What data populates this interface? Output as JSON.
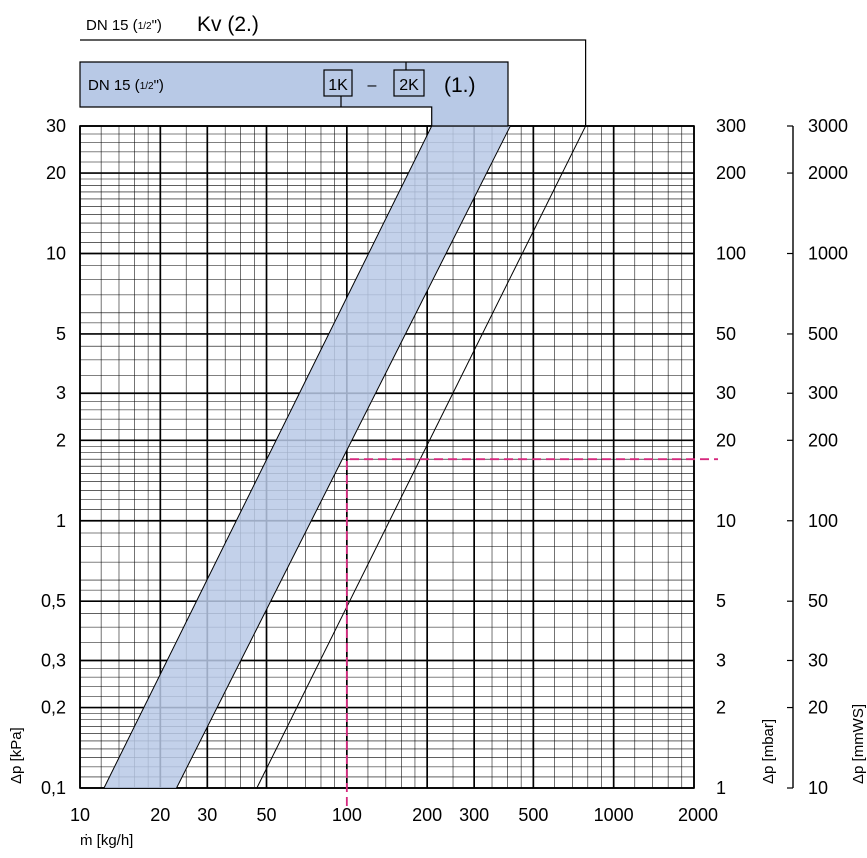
{
  "chart_data": {
    "type": "line",
    "x_axis": {
      "label": "ṁ [kg/h]",
      "scale": "log",
      "range": [
        10,
        2000
      ],
      "tick_labels": [
        {
          "value": 10,
          "label": "10"
        },
        {
          "value": 20,
          "label": "20"
        },
        {
          "value": 30,
          "label": "30"
        },
        {
          "value": 50,
          "label": "50"
        },
        {
          "value": 100,
          "label": "100"
        },
        {
          "value": 200,
          "label": "200"
        },
        {
          "value": 300,
          "label": "300"
        },
        {
          "value": 500,
          "label": "500"
        },
        {
          "value": 1000,
          "label": "1000"
        },
        {
          "value": 2000,
          "label": "2000"
        }
      ]
    },
    "y_axis_left": {
      "label": "Δp [kPa]",
      "scale": "log",
      "range": [
        0.1,
        30
      ],
      "tick_labels": [
        {
          "value": 0.1,
          "label": "0,1"
        },
        {
          "value": 0.2,
          "label": "0,2"
        },
        {
          "value": 0.3,
          "label": "0,3"
        },
        {
          "value": 0.5,
          "label": "0,5"
        },
        {
          "value": 1,
          "label": "1"
        },
        {
          "value": 2,
          "label": "2"
        },
        {
          "value": 3,
          "label": "3"
        },
        {
          "value": 5,
          "label": "5"
        },
        {
          "value": 10,
          "label": "10"
        },
        {
          "value": 20,
          "label": "20"
        },
        {
          "value": 30,
          "label": "30"
        }
      ]
    },
    "y_axis_mbar": {
      "label": "Δp [mbar]",
      "tick_labels": [
        {
          "value": 1,
          "label": "1"
        },
        {
          "value": 2,
          "label": "2"
        },
        {
          "value": 3,
          "label": "3"
        },
        {
          "value": 5,
          "label": "5"
        },
        {
          "value": 10,
          "label": "10"
        },
        {
          "value": 20,
          "label": "20"
        },
        {
          "value": 30,
          "label": "30"
        },
        {
          "value": 50,
          "label": "50"
        },
        {
          "value": 100,
          "label": "100"
        },
        {
          "value": 200,
          "label": "200"
        },
        {
          "value": 300,
          "label": "300"
        }
      ]
    },
    "y_axis_mmws": {
      "label": "Δp [mmWS]",
      "tick_labels": [
        {
          "value": 10,
          "label": "10"
        },
        {
          "value": 20,
          "label": "20"
        },
        {
          "value": 30,
          "label": "30"
        },
        {
          "value": 50,
          "label": "50"
        },
        {
          "value": 100,
          "label": "100"
        },
        {
          "value": 200,
          "label": "200"
        },
        {
          "value": 300,
          "label": "300"
        },
        {
          "value": 500,
          "label": "500"
        },
        {
          "value": 1000,
          "label": "1000"
        },
        {
          "value": 2000,
          "label": "2000"
        },
        {
          "value": 3000,
          "label": "3000"
        }
      ]
    },
    "grid": true,
    "series": [
      {
        "x": [
          12.3,
          208
        ],
        "y": [
          0.1,
          30
        ]
      },
      {
        "x": [
          23,
          410
        ],
        "y": [
          0.1,
          30
        ]
      },
      {
        "x": [
          46,
          785
        ],
        "y": [
          0.1,
          30
        ]
      }
    ],
    "band": {
      "label": "(1.)",
      "color": "#b8c9e6",
      "lower_series": 0,
      "upper_series": 1
    },
    "band_label": {
      "prefix": "DN 15 (",
      "frac": "1/2",
      "suffix": "\")",
      "k1": "1K",
      "dash": "–",
      "k2": "2K",
      "number": "(1.)"
    },
    "kv_label": {
      "prefix": "DN 15 (",
      "frac": "1/2",
      "suffix": "\")",
      "text": "Kv (2.)"
    },
    "reading_example": {
      "x": 100,
      "y": 1.7,
      "color": "#d6287e"
    }
  }
}
